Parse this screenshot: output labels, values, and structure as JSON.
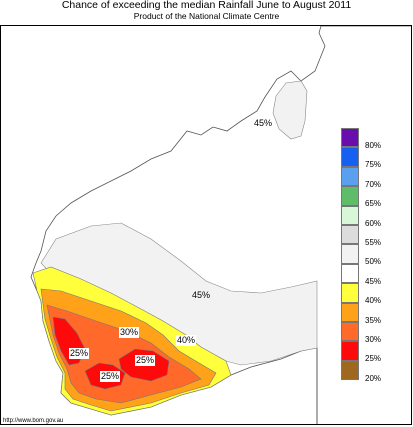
{
  "header": {
    "title": "Chance of exceeding the median Rainfall June to August 2011",
    "subtitle": "Product of the National Climate Centre"
  },
  "map": {
    "region": "Western Australia",
    "contour_labels": [
      "45%",
      "45%",
      "40%",
      "30%",
      "25%",
      "25%",
      "25%"
    ]
  },
  "legend": {
    "items": [
      {
        "label": "80%",
        "color": "#6a0dad"
      },
      {
        "label": "75%",
        "color": "#1560f0"
      },
      {
        "label": "70%",
        "color": "#5aa0ef"
      },
      {
        "label": "65%",
        "color": "#5fbd6a"
      },
      {
        "label": "60%",
        "color": "#d8f6d8"
      },
      {
        "label": "55%",
        "color": "#dcdcdc"
      },
      {
        "label": "50%",
        "color": "#f2f2f2"
      },
      {
        "label": "45%",
        "color": "#ffffff"
      },
      {
        "label": "40%",
        "color": "#ffff3c"
      },
      {
        "label": "35%",
        "color": "#ffa21a"
      },
      {
        "label": "30%",
        "color": "#ff6a2a"
      },
      {
        "label": "25%",
        "color": "#ff0a0a"
      },
      {
        "label": "20%",
        "color": "#a0681e"
      }
    ]
  },
  "footer": {
    "credit": "http://www.bom.gov.au"
  }
}
